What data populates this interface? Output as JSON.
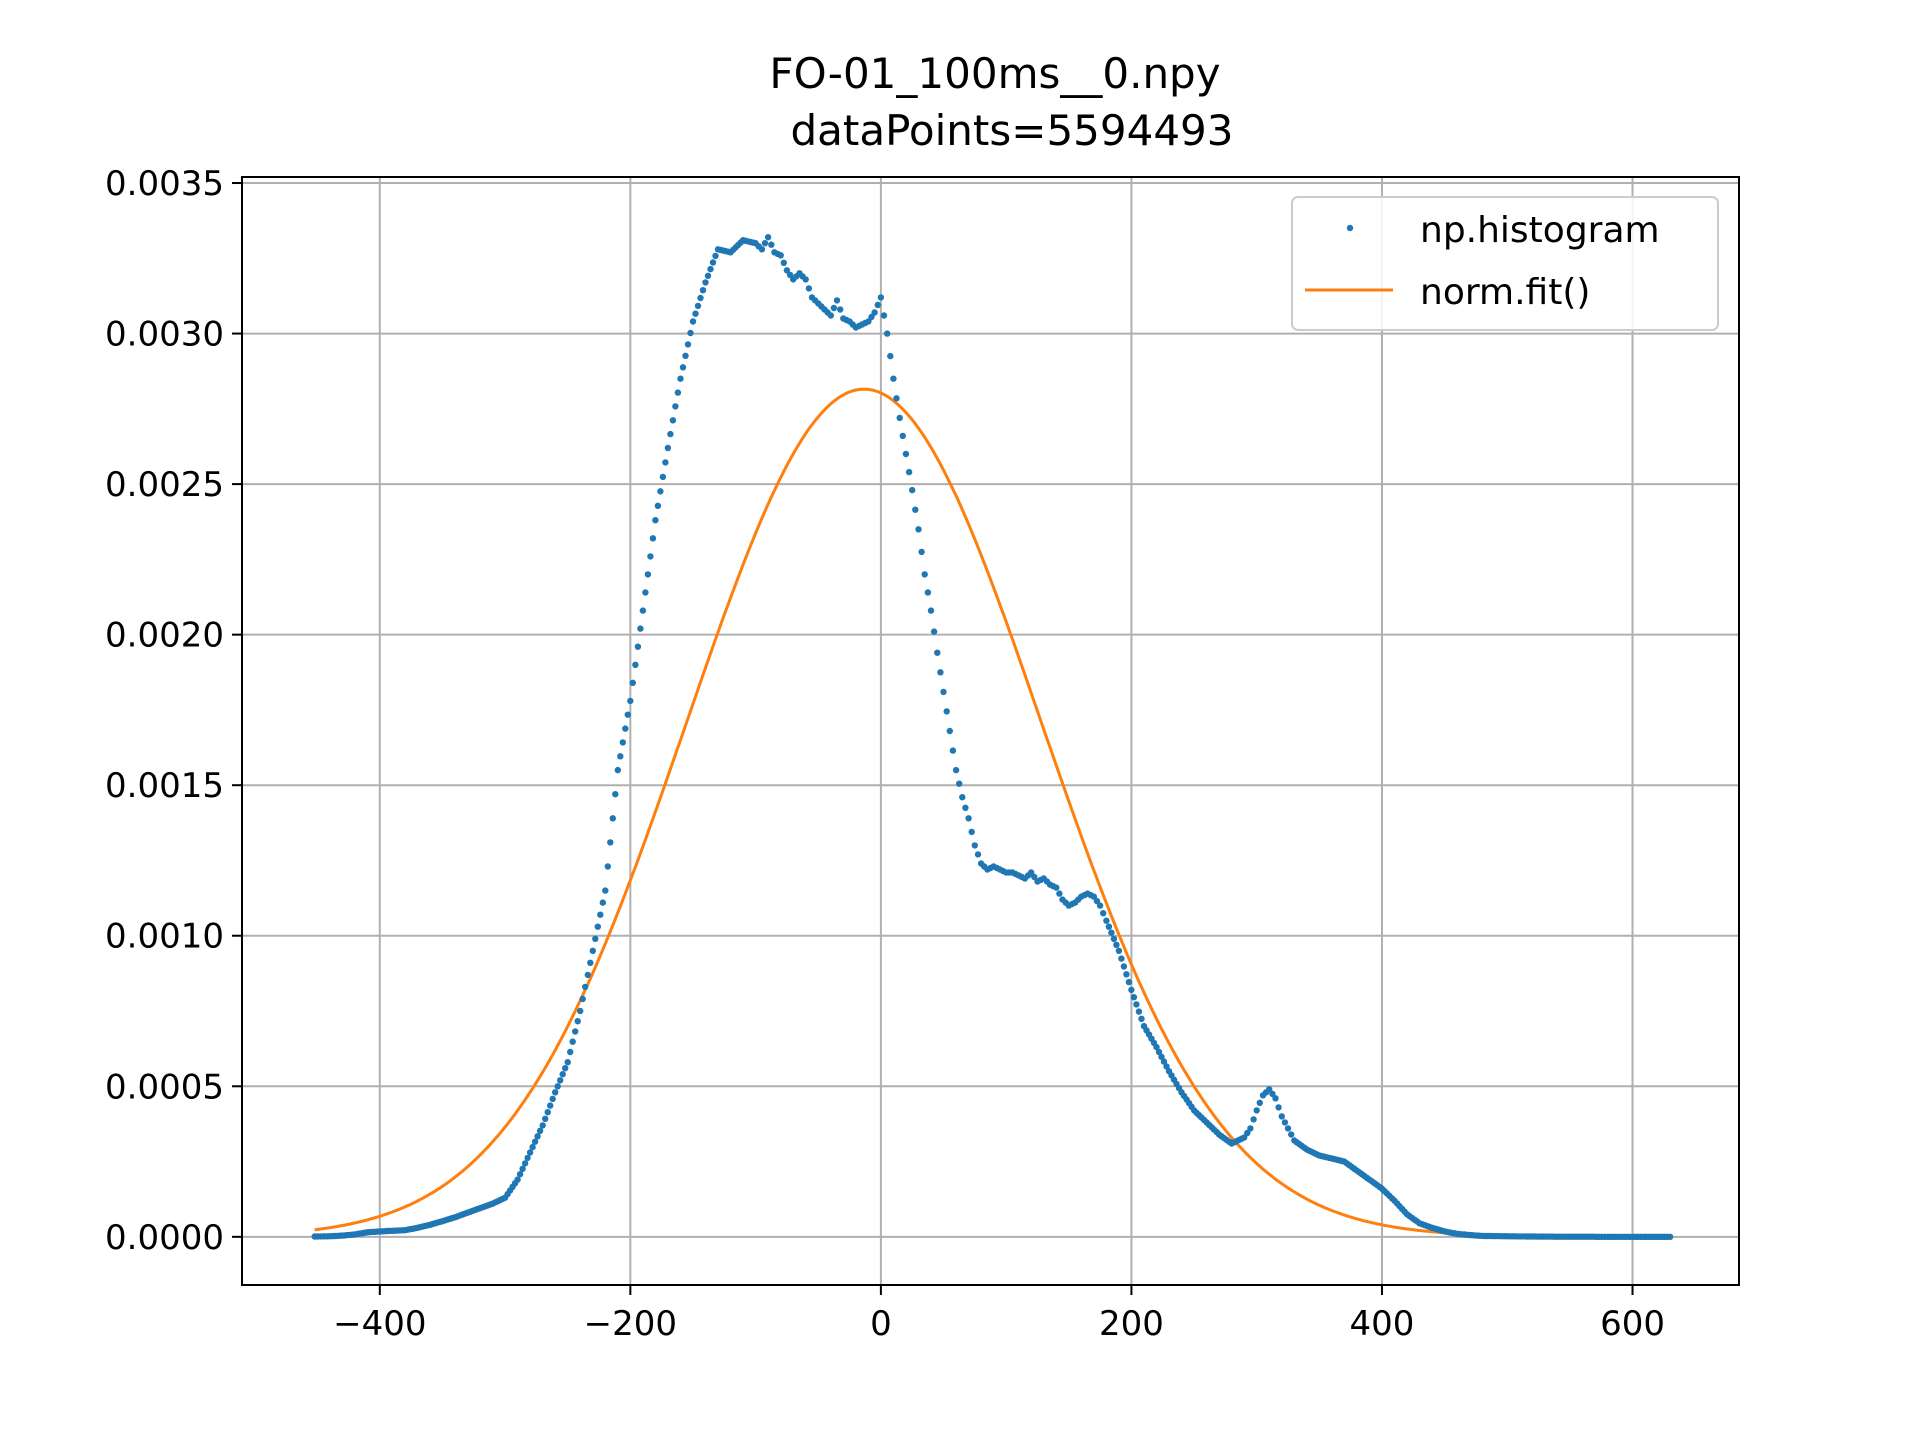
{
  "chart_data": {
    "type": "scatter",
    "title": "FO-01_100ms__0.npy",
    "subtitle": "dataPoints=5594493",
    "xlabel": "",
    "ylabel": "",
    "xlim": [
      -510,
      685
    ],
    "ylim": [
      -0.00016,
      0.00352
    ],
    "x_ticks": [
      -400,
      -200,
      0,
      200,
      400,
      600
    ],
    "x_tick_labels": [
      "−400",
      "−200",
      "0",
      "200",
      "400",
      "600"
    ],
    "y_ticks": [
      0.0,
      0.0005,
      0.001,
      0.0015,
      0.002,
      0.0025,
      0.003,
      0.0035
    ],
    "y_tick_labels": [
      "0.0000",
      "0.0005",
      "0.0010",
      "0.0015",
      "0.0020",
      "0.0025",
      "0.0030",
      "0.0035"
    ],
    "grid": true,
    "legend_position": "top-right",
    "series": [
      {
        "name": "np.histogram",
        "kind": "scatter",
        "color": "#1f77b4",
        "x": [
          -452,
          -440,
          -430,
          -420,
          -410,
          -400,
          -390,
          -380,
          -370,
          -360,
          -350,
          -340,
          -330,
          -320,
          -310,
          -300,
          -290,
          -280,
          -270,
          -260,
          -250,
          -240,
          -230,
          -220,
          -210,
          -200,
          -190,
          -180,
          -170,
          -160,
          -150,
          -140,
          -130,
          -120,
          -110,
          -100,
          -95,
          -90,
          -85,
          -80,
          -75,
          -70,
          -65,
          -60,
          -55,
          -50,
          -45,
          -40,
          -35,
          -30,
          -25,
          -20,
          -15,
          -10,
          -5,
          0,
          5,
          10,
          15,
          20,
          25,
          30,
          35,
          40,
          45,
          50,
          55,
          60,
          65,
          70,
          75,
          80,
          85,
          90,
          95,
          100,
          105,
          110,
          115,
          120,
          125,
          130,
          135,
          140,
          145,
          150,
          155,
          160,
          165,
          170,
          175,
          180,
          190,
          200,
          210,
          220,
          230,
          240,
          250,
          260,
          270,
          280,
          290,
          295,
          300,
          305,
          310,
          315,
          320,
          325,
          330,
          340,
          350,
          360,
          370,
          380,
          390,
          400,
          410,
          420,
          430,
          440,
          450,
          460,
          470,
          480,
          500,
          520,
          540,
          560,
          580,
          600,
          630
        ],
        "y": [
          1e-06,
          2e-06,
          4e-06,
          8e-06,
          1.5e-05,
          1.8e-05,
          2e-05,
          2.2e-05,
          3e-05,
          4e-05,
          5.2e-05,
          6.5e-05,
          8e-05,
          9.5e-05,
          0.00011,
          0.00013,
          0.00019,
          0.00028,
          0.00037,
          0.00048,
          0.00058,
          0.00075,
          0.00095,
          0.00115,
          0.00155,
          0.00178,
          0.00208,
          0.00238,
          0.00262,
          0.00285,
          0.00304,
          0.00317,
          0.00328,
          0.00327,
          0.00331,
          0.0033,
          0.00328,
          0.00332,
          0.00327,
          0.00326,
          0.00321,
          0.00318,
          0.0032,
          0.00318,
          0.00312,
          0.0031,
          0.00308,
          0.00306,
          0.00311,
          0.00305,
          0.00304,
          0.00302,
          0.00303,
          0.00304,
          0.00307,
          0.00312,
          0.003,
          0.00285,
          0.00272,
          0.0026,
          0.00248,
          0.00235,
          0.0022,
          0.00208,
          0.00194,
          0.00181,
          0.00168,
          0.00155,
          0.00146,
          0.00139,
          0.0013,
          0.00124,
          0.00122,
          0.00123,
          0.00122,
          0.00121,
          0.00121,
          0.0012,
          0.00119,
          0.00121,
          0.00118,
          0.00119,
          0.00117,
          0.00116,
          0.00112,
          0.0011,
          0.00111,
          0.00113,
          0.00114,
          0.00113,
          0.0011,
          0.00105,
          0.00095,
          0.00082,
          0.0007,
          0.00063,
          0.00055,
          0.00048,
          0.00042,
          0.00038,
          0.00034,
          0.00031,
          0.00033,
          0.00036,
          0.00042,
          0.00047,
          0.00049,
          0.00046,
          0.0004,
          0.00036,
          0.00032,
          0.00029,
          0.00027,
          0.00026,
          0.00025,
          0.00022,
          0.00019,
          0.00016,
          0.00012,
          7.5e-05,
          4.5e-05,
          3e-05,
          1.8e-05,
          1e-05,
          6e-06,
          3e-06,
          2e-06,
          1e-06,
          5e-07,
          3e-07,
          2e-07,
          1e-07,
          5e-08
        ]
      },
      {
        "name": "norm.fit()",
        "kind": "line",
        "color": "#ff7f0e",
        "mean": -13.5,
        "std": 141.7,
        "x_range": [
          -452,
          630
        ]
      }
    ]
  }
}
